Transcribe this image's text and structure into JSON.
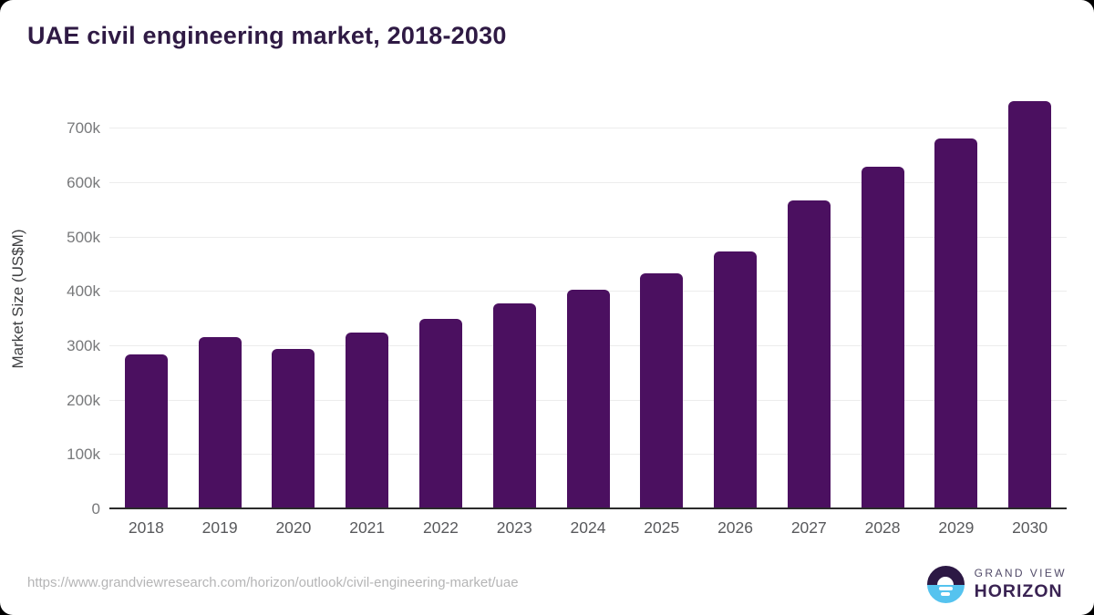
{
  "title": "UAE civil engineering market, 2018-2030",
  "footer": {
    "source_url": "https://www.grandviewresearch.com/horizon/outlook/civil-engineering-market/uae",
    "logo": {
      "top_text": "GRAND VIEW",
      "bottom_text": "HORIZON"
    }
  },
  "colors": {
    "bar": "#4b1060",
    "title_text": "#2f1a44",
    "grid_line": "#ececec",
    "axis_line": "#2b2b2b",
    "y_tick_label": "#77787a",
    "x_tick_label": "#58595c",
    "axis_title": "#3e3f41",
    "url_text": "#b5b5b6",
    "logo_dark_purple": "#2c1844",
    "logo_light_blue": "#55c3ef",
    "logo_horizon_text": "#3a2353",
    "logo_grand_view_text": "#514a68",
    "card_background": "#ffffff"
  },
  "chart_data": {
    "type": "bar",
    "title": "UAE civil engineering market, 2018-2030",
    "categories": [
      "2018",
      "2019",
      "2020",
      "2021",
      "2022",
      "2023",
      "2024",
      "2025",
      "2026",
      "2027",
      "2028",
      "2029",
      "2030"
    ],
    "values": [
      283000,
      315000,
      293000,
      324000,
      348000,
      377000,
      403000,
      433000,
      472000,
      566000,
      629000,
      681000,
      750000
    ],
    "unit": "US$M",
    "xlabel": "",
    "ylabel": "Market Size (US$M)",
    "ylim": [
      0,
      776000
    ],
    "yticks": [
      0,
      100000,
      200000,
      300000,
      400000,
      500000,
      600000,
      700000
    ],
    "ytick_labels": [
      "0",
      "100k",
      "200k",
      "300k",
      "400k",
      "500k",
      "600k",
      "700k"
    ],
    "grid": true,
    "legend": false
  }
}
